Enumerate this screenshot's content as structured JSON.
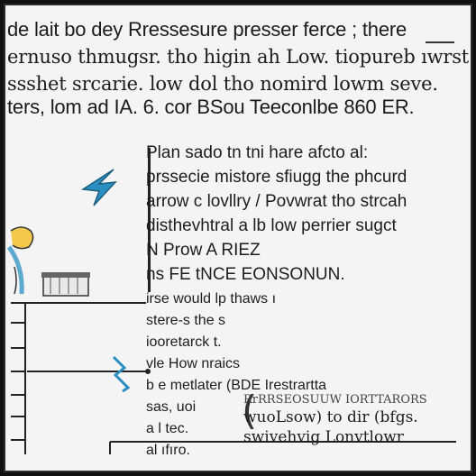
{
  "header": {
    "line1": "de lait bo dey Rressesure presser ferce ; there",
    "line2": "ernuso thmugsr. tho higin ah Low. tiopureb ıwrst",
    "line3": "ssshet srcarie. low dol tho nomird lowm seve.",
    "line4": "ters, lom ad IA. 6. cor BSou Teeconlbe 860 ER."
  },
  "note": {
    "lines": [
      "Plan sado tn tni hare afcto al:",
      "prssecie mistore sfiugg the phcurd",
      "arrow c lovllry / Povwrat tho strcah",
      "disthevhtral a lb low perrier sugct",
      "N Prow A RIEZ",
      "ns FE tNCE EONSONUN."
    ]
  },
  "list": {
    "lines": [
      "irse would lp thaws ı",
      "stere-s the s",
      "iooretarck t.",
      "vle How nraics",
      "b e metlater (BDE Irestrartta",
      "sas, uoi",
      "a l tec.",
      "al ıfıro."
    ]
  },
  "callout": {
    "line1": "RrRRSEOSUUW IORTTARORS",
    "line2": "wuoLsow) to dir (bfgs.",
    "line3": "swivehvig Lonvtlowr"
  },
  "colors": {
    "arrow": "#2a8fc0",
    "figure_blue": "#5aa9cf",
    "figure_hair": "#f2c94c",
    "ink": "#1b1b1b",
    "background": "#f4f4f4"
  },
  "icons": [
    "lightning-arrow-icon",
    "zigzag-signal-icon",
    "basket-icon",
    "figure-icon"
  ]
}
